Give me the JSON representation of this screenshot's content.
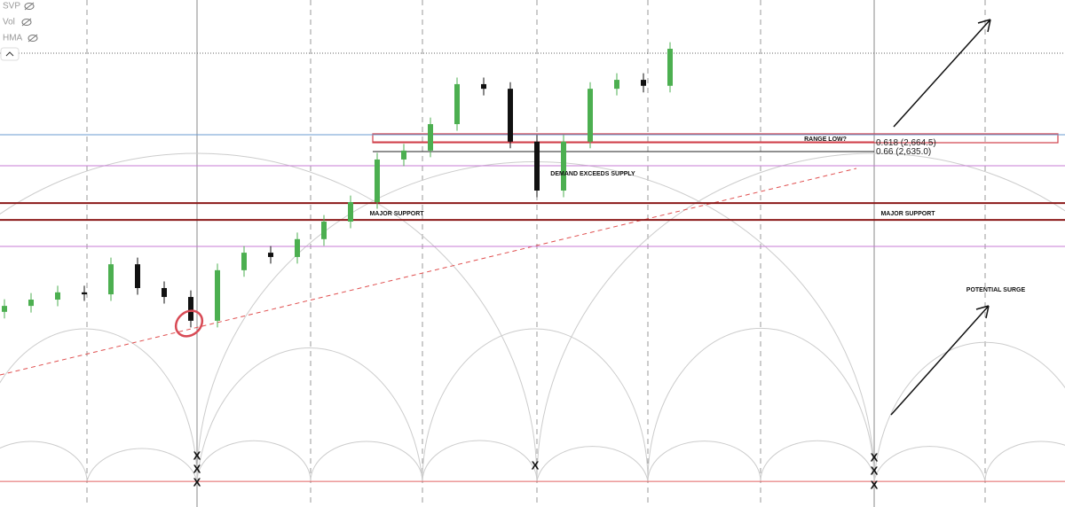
{
  "indicators": [
    "SVP",
    "Vol",
    "HMA"
  ],
  "chart_data": {
    "type": "candlestick",
    "ylim": [
      1559.5,
      3093.6
    ],
    "open": [
      2150,
      2168,
      2187,
      2209,
      2203,
      2294,
      2222,
      2195,
      2123,
      2276,
      2329,
      2316,
      2370,
      2423,
      2482,
      2611,
      2638,
      2718,
      2839,
      2825,
      2665,
      2517,
      2665,
      2825,
      2852,
      2834
    ],
    "high": [
      2188,
      2207,
      2229,
      2229,
      2314,
      2314,
      2242,
      2215,
      2296,
      2349,
      2349,
      2390,
      2443,
      2502,
      2631,
      2658,
      2738,
      2859,
      2859,
      2845,
      2685,
      2685,
      2845,
      2872,
      2872,
      2966
    ],
    "low": [
      2130,
      2148,
      2167,
      2183,
      2183,
      2202,
      2175,
      2103,
      2103,
      2256,
      2296,
      2296,
      2350,
      2403,
      2462,
      2591,
      2618,
      2698,
      2805,
      2645,
      2497,
      2497,
      2645,
      2805,
      2814,
      2814
    ],
    "close": [
      2168,
      2187,
      2209,
      2203,
      2294,
      2222,
      2195,
      2123,
      2276,
      2329,
      2316,
      2370,
      2423,
      2482,
      2611,
      2638,
      2718,
      2839,
      2825,
      2665,
      2517,
      2665,
      2825,
      2852,
      2834,
      2946
    ],
    "up_color": "#4caf50",
    "down_color": "#111111",
    "levels": [
      {
        "value": 2686,
        "color": "#6a9bd1"
      },
      {
        "value": 2592,
        "color": "#c77bd6"
      },
      {
        "value": 2479,
        "color": "#8b1a1a"
      },
      {
        "value": 2428,
        "color": "#8b1a1a"
      },
      {
        "value": 2348,
        "color": "#c77bd6"
      },
      {
        "value": 1637,
        "color": "#e06060"
      }
    ],
    "fib_levels": [
      {
        "value": 2664.5,
        "label": "0.618 (2,664.5)"
      },
      {
        "value": 2635.0,
        "label": "0.66 (2,635.0)"
      }
    ],
    "annotations": [
      "RANGE LOW?",
      "DEMAND EXCEEDS SUPPLY",
      "MAJOR SUPPORT",
      "MAJOR SUPPORT",
      "POTENTIAL SURGE"
    ],
    "cycle_marks": [
      "X",
      "X",
      "X",
      "X",
      "X",
      "X",
      "X"
    ]
  }
}
